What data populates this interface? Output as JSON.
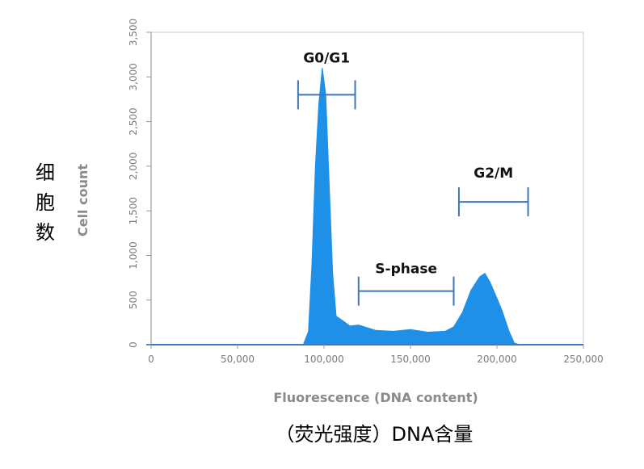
{
  "chart_data": {
    "type": "area",
    "title": "",
    "xlabel": "Fluorescence (DNA content)",
    "ylabel": "Cell count",
    "xlabel_cn": "（荧光强度）DNA含量",
    "ylabel_cn": "细胞数",
    "xlim": [
      0,
      250000
    ],
    "ylim": [
      0,
      3500
    ],
    "x_ticks": [
      0,
      50000,
      100000,
      150000,
      200000,
      250000
    ],
    "x_tick_labels": [
      "0",
      "50,000",
      "100,000",
      "150,000",
      "200,000",
      "250,000"
    ],
    "y_ticks": [
      0,
      500,
      1000,
      1500,
      2000,
      2500,
      3000,
      3500
    ],
    "y_tick_labels": [
      "0",
      "500",
      "1,000",
      "1,500",
      "2,000",
      "2,500",
      "3,000",
      "3,500"
    ],
    "fill_color": "#1e90e8",
    "series": [
      {
        "x": [
          0,
          88000,
          91000,
          93000,
          95000,
          97000,
          99000,
          101000,
          103000,
          105000,
          107000,
          110000,
          115000,
          120000,
          125000,
          130000,
          140000,
          150000,
          160000,
          170000,
          175000,
          180000,
          185000,
          190000,
          193000,
          196000,
          200000,
          203000,
          207000,
          210000,
          213000,
          250000
        ],
        "y": [
          0,
          0,
          150,
          900,
          2000,
          2700,
          3100,
          2800,
          1800,
          800,
          320,
          280,
          210,
          220,
          190,
          160,
          150,
          170,
          140,
          150,
          200,
          360,
          610,
          760,
          800,
          700,
          520,
          380,
          150,
          20,
          0,
          0
        ]
      }
    ],
    "annotations": [
      {
        "label": "G0/G1",
        "range": [
          85000,
          118000
        ],
        "y": 2800
      },
      {
        "label": "S-phase",
        "range": [
          120000,
          175000
        ],
        "y": 600
      },
      {
        "label": "G2/M",
        "range": [
          178000,
          218000
        ],
        "y": 1600
      }
    ],
    "grid": false,
    "legend": "none"
  }
}
